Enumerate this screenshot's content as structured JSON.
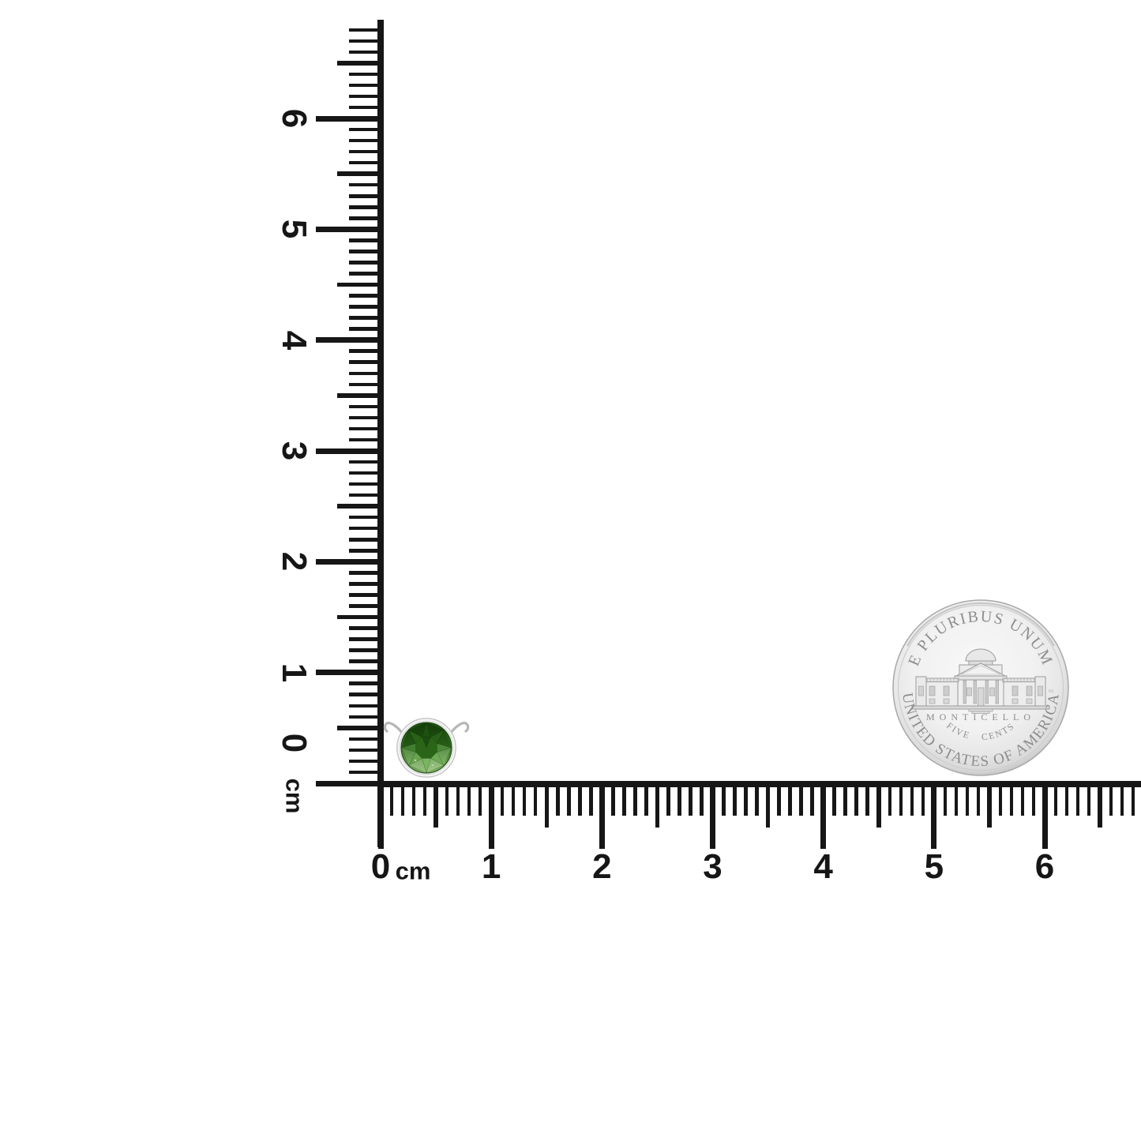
{
  "page": {
    "background": "#ffffff"
  },
  "rulers": {
    "vertical": {
      "unit": "cm",
      "labels": [
        "0",
        "1",
        "2",
        "3",
        "4",
        "5",
        "6"
      ]
    },
    "horizontal": {
      "unit": "cm",
      "labels": [
        "0",
        "1",
        "2",
        "3",
        "4",
        "5",
        "6"
      ]
    }
  },
  "pendant": {
    "kind": "round green gemstone in silver bezel with side wires",
    "stone_color_dark": "#1d5210",
    "stone_color_mid": "#3f7c2e",
    "stone_color_light": "#7fb265",
    "metal_color": "#c3c3c3"
  },
  "coin": {
    "top_legend": "E PLURIBUS UNUM",
    "building_label": "MONTICELLO",
    "denomination": "FIVE CENTS",
    "bottom_legend": "UNITED STATES OF AMERICA",
    "designer_initials": "FS",
    "field_color": "#efefef",
    "text_color": "#8d8d8d"
  },
  "ruler_style": {
    "ink_color": "#161616"
  }
}
